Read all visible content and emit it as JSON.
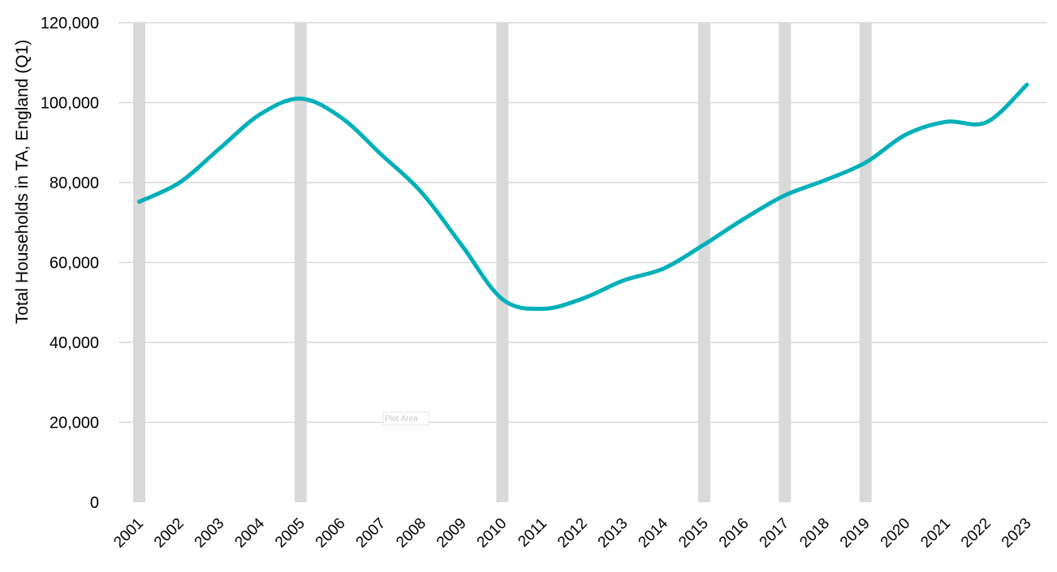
{
  "chart_data": {
    "type": "line",
    "title": "",
    "xlabel": "",
    "ylabel": "Total Households in TA, England (Q1)",
    "categories": [
      "2001",
      "2002",
      "2003",
      "2004",
      "2005",
      "2006",
      "2007",
      "2008",
      "2009",
      "2010",
      "2011",
      "2012",
      "2013",
      "2014",
      "2015",
      "2016",
      "2017",
      "2018",
      "2019",
      "2020",
      "2021",
      "2022",
      "2023"
    ],
    "series": [
      {
        "values": [
          75200,
          80000,
          88600,
          97100,
          101000,
          96300,
          87000,
          77500,
          64200,
          50800,
          48400,
          51000,
          55500,
          58500,
          64500,
          71000,
          76800,
          80600,
          85000,
          92000,
          95200,
          95100,
          104500
        ]
      }
    ],
    "highlight_years": [
      "2001",
      "2005",
      "2010",
      "2015",
      "2017",
      "2019"
    ],
    "ylim": [
      0,
      120000
    ],
    "y_ticks": [
      "0",
      "20,000",
      "40,000",
      "60,000",
      "80,000",
      "100,000",
      "120,000"
    ],
    "grid": true,
    "legend": "none",
    "colors": {
      "line": "#00b0b9",
      "highlight_band": "#d9d9d9",
      "gridline": "#d9d9d9"
    }
  },
  "tooltip": {
    "label": "Plot Area"
  }
}
